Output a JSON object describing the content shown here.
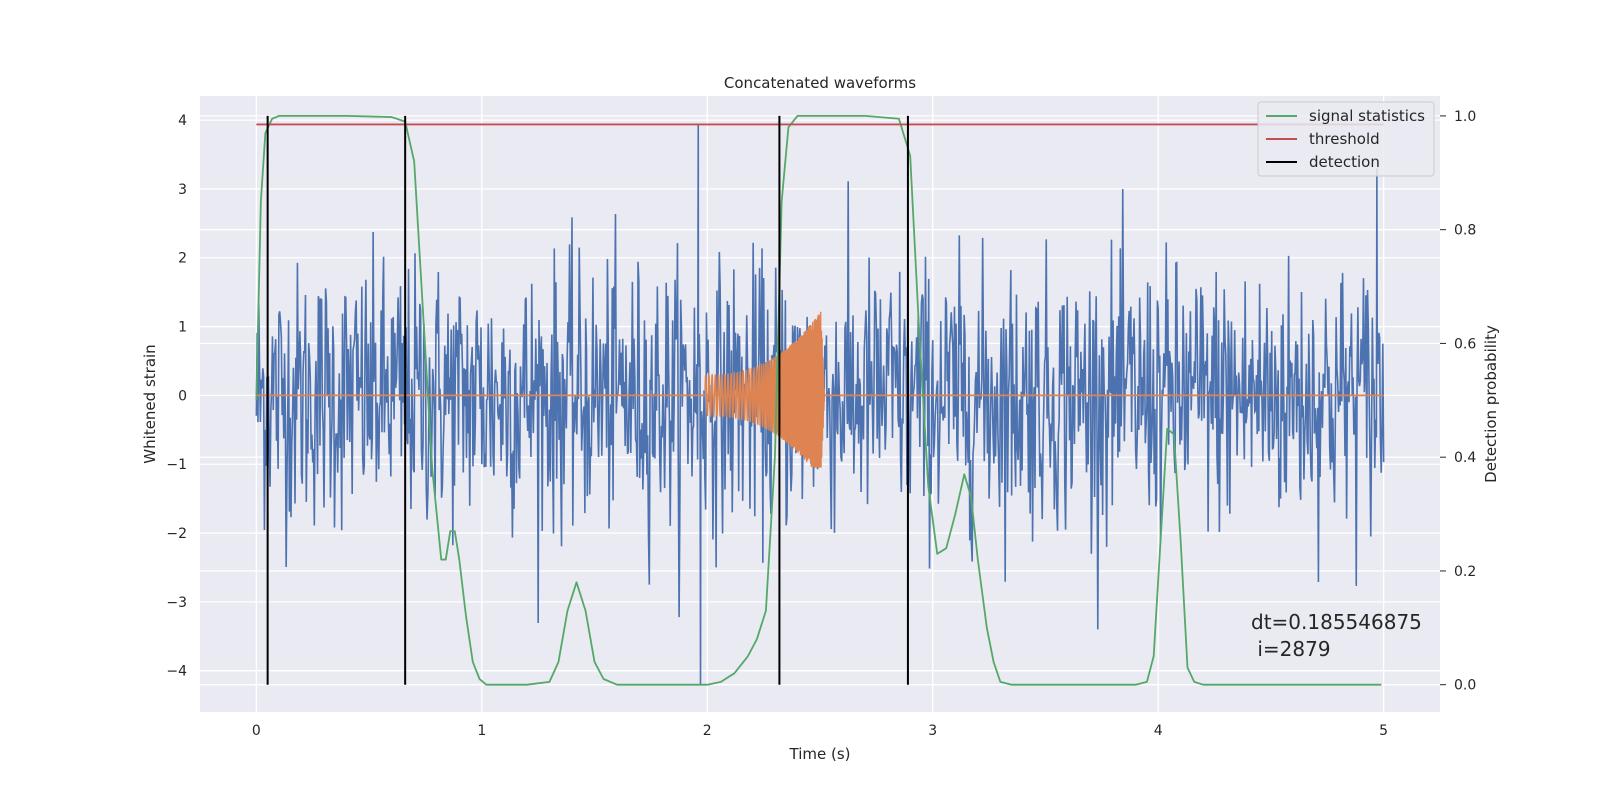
{
  "chart_data": {
    "type": "line",
    "title": "Concatenated waveforms",
    "xlabel": "Time (s)",
    "ylabel": "Whitened strain",
    "y2label": "Detection probability",
    "xlim": [
      -0.25,
      5.25
    ],
    "ylim": [
      -4.6,
      4.35
    ],
    "y2lim": [
      -0.048,
      1.035
    ],
    "xticks": [
      0,
      1,
      2,
      3,
      4,
      5
    ],
    "yticks": [
      -4,
      -3,
      -2,
      -1,
      0,
      1,
      2,
      3,
      4
    ],
    "y2ticks": [
      0.0,
      0.2,
      0.4,
      0.6,
      0.8,
      1.0
    ],
    "xtick_labels": [
      "0",
      "1",
      "2",
      "3",
      "4",
      "5"
    ],
    "ytick_labels": [
      "−4",
      "−3",
      "−2",
      "−1",
      "0",
      "1",
      "2",
      "3",
      "4"
    ],
    "y2tick_labels": [
      "0.0",
      "0.2",
      "0.4",
      "0.6",
      "0.8",
      "1.0"
    ],
    "grid": true,
    "legend_position": "top-right",
    "annotation_lines": [
      "dt=0.185546875",
      " i=2879"
    ],
    "series": [
      {
        "name": "",
        "color": "#4c72b0",
        "axis": "left",
        "kind": "noise",
        "x_range": [
          0,
          5
        ],
        "spikes": [
          {
            "x": 1.96,
            "y": 3.95
          },
          {
            "x": 1.97,
            "y": -4.2
          },
          {
            "x": 4.97,
            "y": 3.3
          }
        ]
      },
      {
        "name": "",
        "color": "#dd8452",
        "axis": "left",
        "kind": "chirp",
        "x_range": [
          1.99,
          2.52
        ],
        "envelope_start": 0.3,
        "envelope_peak": 1.3,
        "envelope_min": -1.05
      },
      {
        "name": "signal statistics",
        "color": "#55a868",
        "axis": "right",
        "x": [
          0.0,
          0.02,
          0.04,
          0.07,
          0.1,
          0.2,
          0.4,
          0.6,
          0.66,
          0.7,
          0.74,
          0.78,
          0.82,
          0.84,
          0.86,
          0.88,
          0.9,
          0.93,
          0.96,
          0.99,
          1.02,
          1.1,
          1.2,
          1.3,
          1.34,
          1.38,
          1.42,
          1.46,
          1.5,
          1.54,
          1.6,
          1.8,
          2.0,
          2.06,
          2.12,
          2.18,
          2.22,
          2.26,
          2.3,
          2.33,
          2.36,
          2.4,
          2.5,
          2.7,
          2.85,
          2.9,
          2.94,
          2.98,
          3.02,
          3.06,
          3.1,
          3.14,
          3.17,
          3.2,
          3.24,
          3.27,
          3.3,
          3.35,
          3.5,
          3.7,
          3.9,
          3.95,
          3.98,
          4.01,
          4.04,
          4.07,
          4.1,
          4.13,
          4.16,
          4.2,
          4.4,
          4.7,
          4.99
        ],
        "values": [
          0.5,
          0.85,
          0.97,
          0.995,
          1.0,
          1.0,
          1.0,
          0.998,
          0.99,
          0.92,
          0.65,
          0.38,
          0.22,
          0.22,
          0.27,
          0.27,
          0.22,
          0.12,
          0.04,
          0.01,
          0.0,
          0.0,
          0.0,
          0.005,
          0.04,
          0.13,
          0.18,
          0.13,
          0.04,
          0.01,
          0.0,
          0.0,
          0.0,
          0.005,
          0.02,
          0.05,
          0.08,
          0.13,
          0.4,
          0.85,
          0.98,
          1.0,
          1.0,
          1.0,
          0.995,
          0.93,
          0.62,
          0.35,
          0.23,
          0.24,
          0.3,
          0.37,
          0.33,
          0.22,
          0.1,
          0.04,
          0.005,
          0.0,
          0.0,
          0.0,
          0.0,
          0.005,
          0.05,
          0.25,
          0.45,
          0.44,
          0.25,
          0.03,
          0.005,
          0.0,
          0.0,
          0.0,
          0.0
        ]
      },
      {
        "name": "threshold",
        "color": "#c44e52",
        "axis": "right",
        "x": [
          0,
          5
        ],
        "values": [
          0.985,
          0.985
        ]
      },
      {
        "name": "detection",
        "color": "#000000",
        "axis": "right",
        "kind": "vlines",
        "x": [
          0.05,
          0.66,
          2.32,
          2.89
        ],
        "y_range": [
          0.0,
          1.0
        ]
      }
    ]
  }
}
